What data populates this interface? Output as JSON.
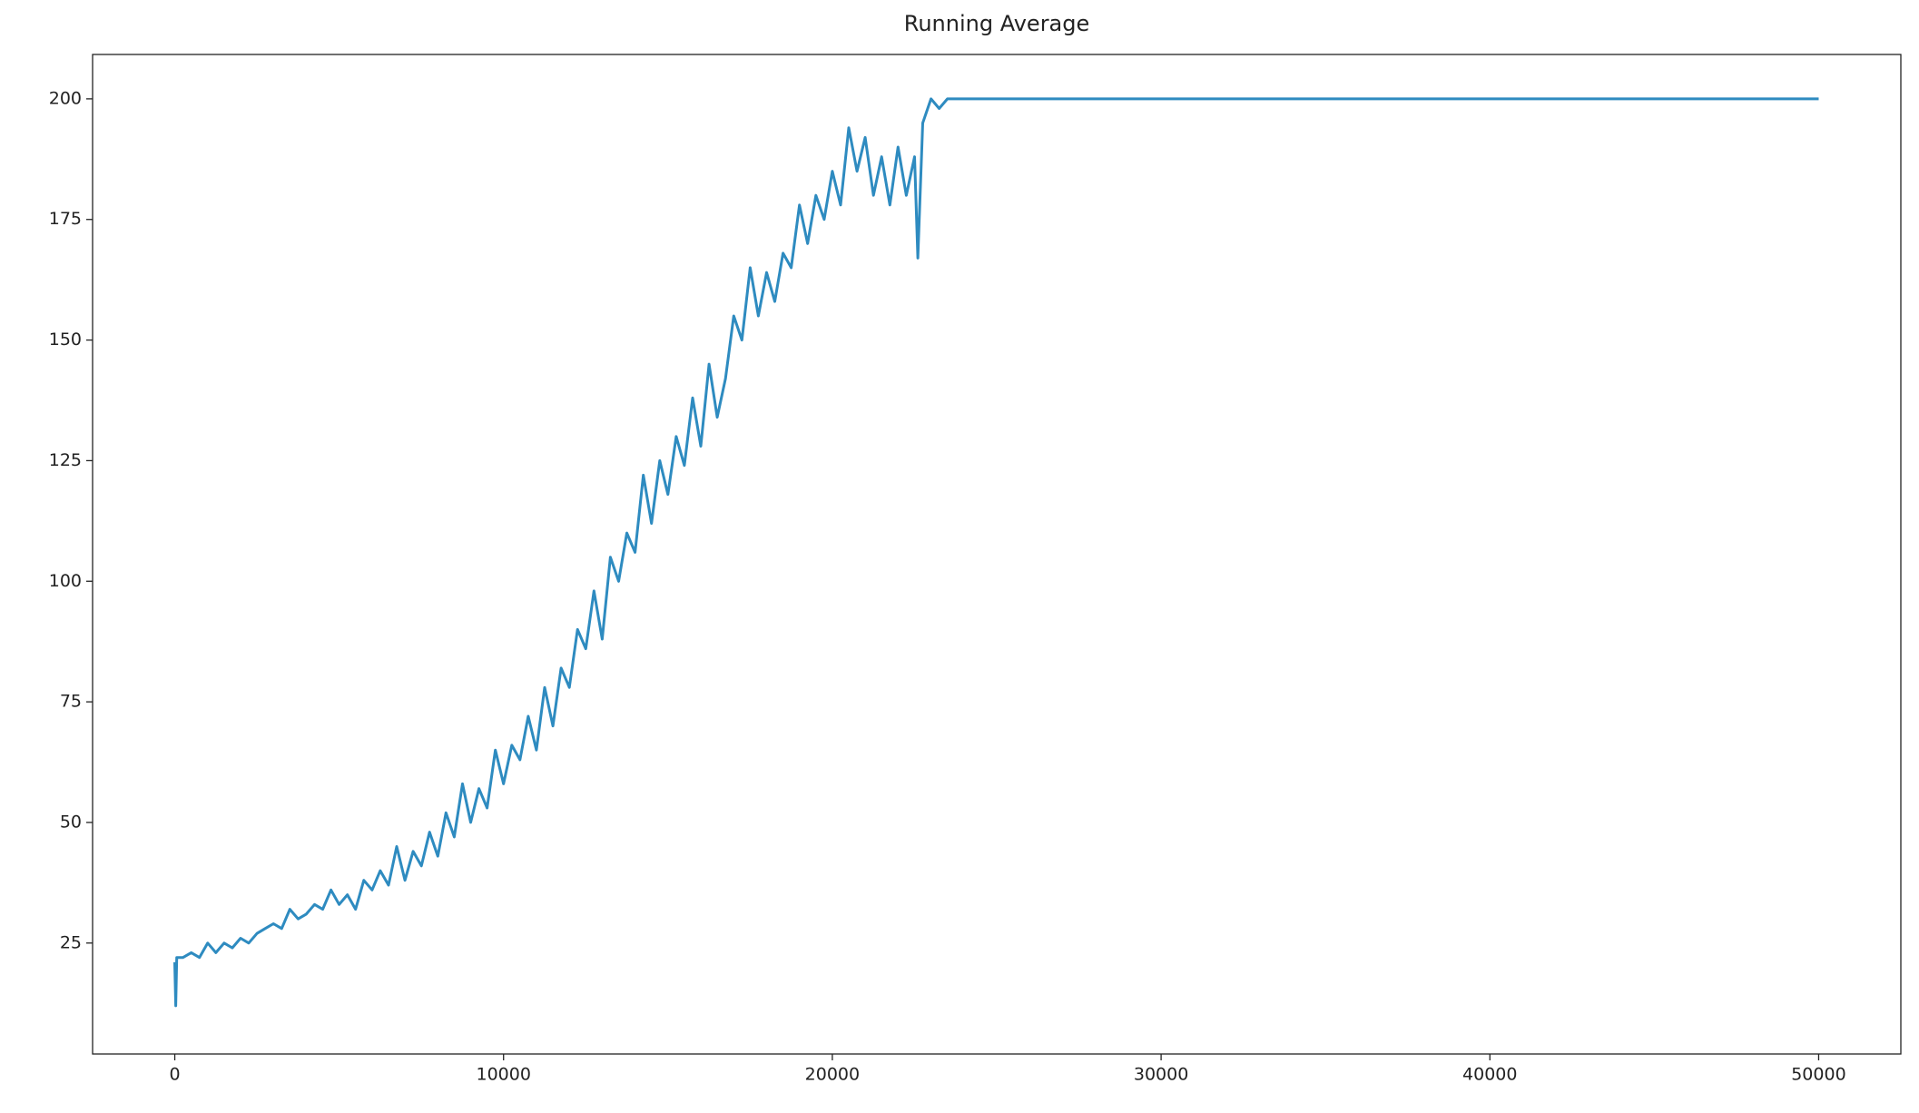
{
  "chart_data": {
    "type": "line",
    "title": "Running Average",
    "x": [
      0,
      30,
      60,
      250,
      500,
      750,
      1000,
      1250,
      1500,
      1750,
      2000,
      2250,
      2500,
      2750,
      3000,
      3250,
      3500,
      3750,
      4000,
      4250,
      4500,
      4750,
      5000,
      5250,
      5500,
      5750,
      6000,
      6250,
      6500,
      6750,
      7000,
      7250,
      7500,
      7750,
      8000,
      8250,
      8500,
      8750,
      9000,
      9250,
      9500,
      9750,
      10000,
      10250,
      10500,
      10750,
      11000,
      11250,
      11500,
      11750,
      12000,
      12250,
      12500,
      12750,
      13000,
      13250,
      13500,
      13750,
      14000,
      14250,
      14500,
      14750,
      15000,
      15250,
      15500,
      15750,
      16000,
      16250,
      16500,
      16750,
      17000,
      17250,
      17500,
      17750,
      18000,
      18250,
      18500,
      18750,
      19000,
      19250,
      19500,
      19750,
      20000,
      20250,
      20500,
      20750,
      21000,
      21250,
      21500,
      21750,
      22000,
      22250,
      22500,
      22600,
      22750,
      23000,
      23250,
      23500,
      50000
    ],
    "series": [
      {
        "color": "#2e8bc0",
        "values": [
          21,
          12,
          22,
          22,
          23,
          22,
          25,
          23,
          25,
          24,
          26,
          25,
          27,
          28,
          29,
          28,
          32,
          30,
          31,
          33,
          32,
          36,
          33,
          35,
          32,
          38,
          36,
          40,
          37,
          45,
          38,
          44,
          41,
          48,
          43,
          52,
          47,
          58,
          50,
          57,
          53,
          65,
          58,
          66,
          63,
          72,
          65,
          78,
          70,
          82,
          78,
          90,
          86,
          98,
          88,
          105,
          100,
          110,
          106,
          122,
          112,
          125,
          118,
          130,
          124,
          138,
          128,
          145,
          134,
          142,
          155,
          150,
          165,
          155,
          164,
          158,
          168,
          165,
          178,
          170,
          180,
          175,
          185,
          178,
          194,
          185,
          192,
          180,
          188,
          178,
          190,
          180,
          188,
          167,
          195,
          200,
          198,
          200,
          200
        ]
      }
    ],
    "xlim": [
      -2500,
      52500
    ],
    "ylim": [
      2,
      209.2
    ],
    "xticks": [
      0,
      10000,
      20000,
      30000,
      40000,
      50000
    ],
    "yticks": [
      25,
      50,
      75,
      100,
      125,
      150,
      175,
      200
    ],
    "grid": false
  }
}
